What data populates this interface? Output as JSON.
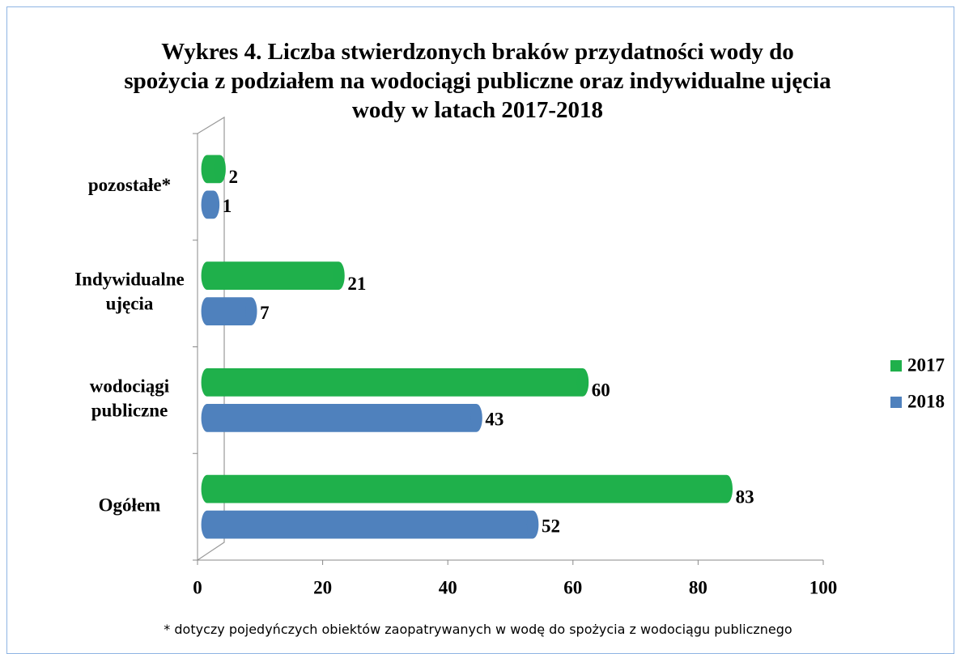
{
  "chart_data": {
    "type": "bar",
    "title": "Wykres 4. Liczba stwierdzonych braków przydatności wody do spożycia z podziałem  na wodociągi publiczne oraz indywidualne ujęcia wody w latach 2017-2018",
    "categories": [
      "Ogółem",
      "wodociągi publiczne",
      "Indywidualne ujęcia",
      "pozostałe*"
    ],
    "series": [
      {
        "name": "2017",
        "color": "#1fb04b",
        "values": [
          83,
          60,
          21,
          2
        ]
      },
      {
        "name": "2018",
        "color": "#4f81bd",
        "values": [
          52,
          43,
          7,
          1
        ]
      }
    ],
    "xlim": [
      0,
      100
    ],
    "xticks": [
      0,
      20,
      40,
      60,
      80,
      100
    ],
    "legend": "right",
    "footnote": "* dotyczy pojedyńczych  obiektów zaopatrywanych w wodę do spożycia z wodociągu publicznego"
  }
}
